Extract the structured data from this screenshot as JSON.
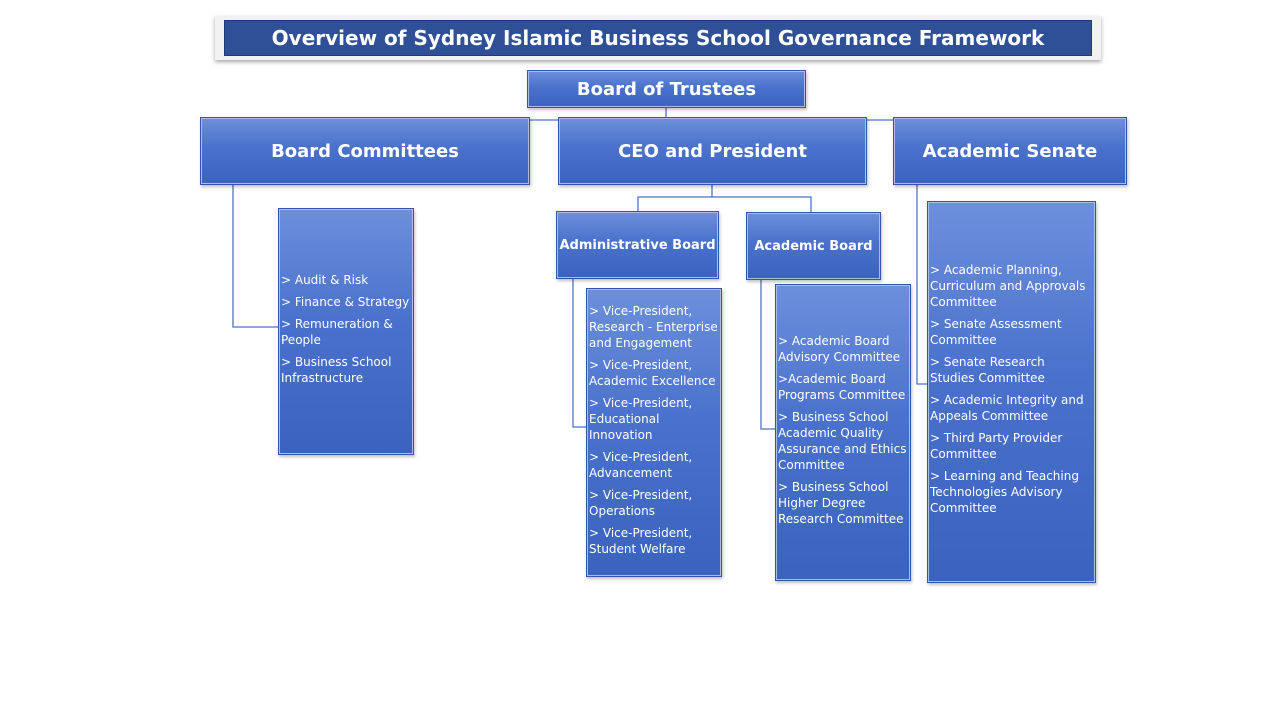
{
  "title": "Overview of Sydney Islamic Business School Governance Framework",
  "board_of_trustees": "Board of Trustees",
  "board_committees": {
    "header": "Board Committees",
    "items": [
      "> Audit & Risk",
      "> Finance & Strategy",
      "> Remuneration & People",
      "> Business School Infrastructure"
    ]
  },
  "ceo": "CEO and President",
  "administrative_board": {
    "header": "Administrative Board",
    "items": [
      "> Vice-President, Research - Enterprise and Engagement",
      "> Vice-President, Academic Excellence",
      "> Vice-President, Educational Innovation",
      "> Vice-President, Advancement",
      "> Vice-President, Operations",
      "> Vice-President, Student Welfare"
    ]
  },
  "academic_board": {
    "header": "Academic Board",
    "items": [
      "> Academic Board Advisory Committee",
      ">Academic Board Programs Committee",
      "> Business School Academic Quality Assurance and Ethics Committee",
      "> Business School Higher Degree Research Committee"
    ]
  },
  "academic_senate": {
    "header": "Academic Senate",
    "items": [
      "> Academic Planning, Curriculum and Approvals Committee",
      "> Senate Assessment Committee",
      "> Senate Research Studies Committee",
      "> Academic Integrity and Appeals Committee",
      "> Third Party Provider Committee",
      "> Learning and Teaching Technologies Advisory Committee"
    ]
  },
  "colors": {
    "box_top": "#6d8fdc",
    "box_bottom": "#3a63bd",
    "title_bar": "#2f4f97",
    "connector": "#4a72cc"
  }
}
